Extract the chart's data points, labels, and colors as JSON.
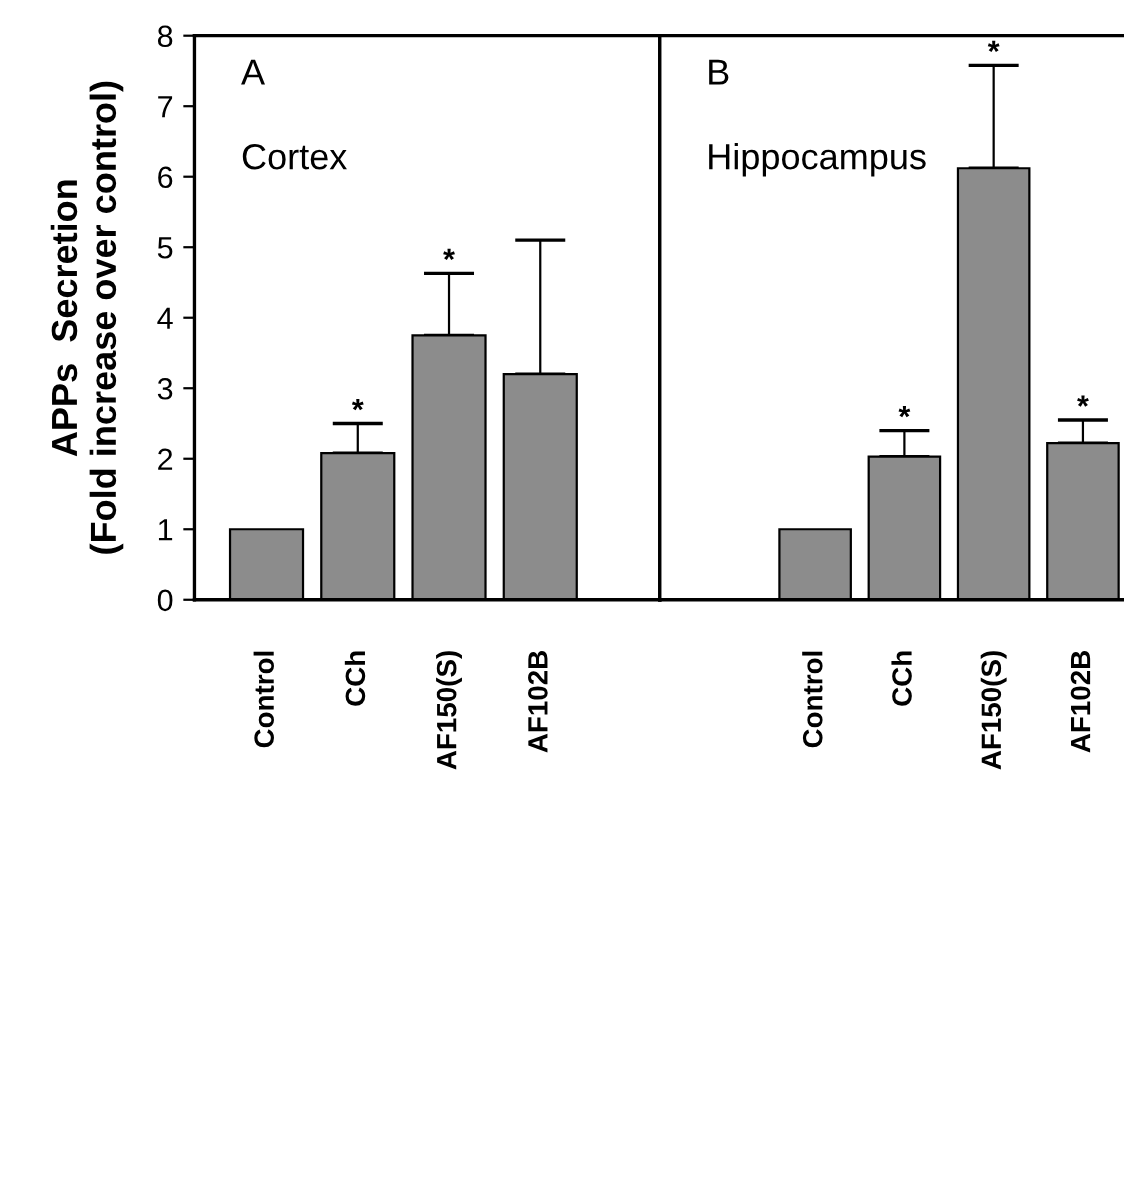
{
  "chart_data": [
    {
      "type": "bar",
      "ylabel": "APPs  Secretion\n(Fold increase over control)",
      "categories": [
        "Control",
        "CCh",
        "AF150(S)",
        "AF102B"
      ],
      "values": [
        1,
        2.08,
        3.75,
        3.2
      ],
      "color": "#8c8c8c",
      "errors": [
        null,
        [
          2.08,
          2.5
        ],
        [
          3.75,
          4.63
        ],
        [
          3.2,
          5.1
        ]
      ],
      "ylim": [
        0,
        8
      ],
      "yticks": [
        0,
        1,
        2,
        3,
        4,
        5,
        6,
        7,
        8
      ],
      "grid": false,
      "annotations": [
        "A",
        "Cortex",
        {
          "text": "*",
          "x": "CCh",
          "y": 2.5
        },
        {
          "text": "*",
          "x": "AF150(S)",
          "y": 4.63
        }
      ]
    },
    {
      "type": "bar",
      "categories": [
        null,
        "Control",
        "CCh",
        "AF150(S)",
        "AF102B"
      ],
      "values": [
        null,
        1,
        2.03,
        6.12,
        2.22
      ],
      "color": "#8c8c8c",
      "errors": [
        null,
        null,
        [
          2.03,
          2.4
        ],
        [
          6.12,
          7.58
        ],
        [
          2.22,
          2.55
        ]
      ],
      "ylim": [
        0,
        8
      ],
      "tick_labels": "x",
      "grid": false,
      "annotations": [
        "B",
        "Hippocampus",
        {
          "text": "*",
          "x": "CCh",
          "y": 2.4
        },
        {
          "text": "*",
          "x": "AF150(S)",
          "y": 7.58
        },
        {
          "text": "*",
          "x": "AF102B",
          "y": 2.55
        }
      ]
    }
  ]
}
